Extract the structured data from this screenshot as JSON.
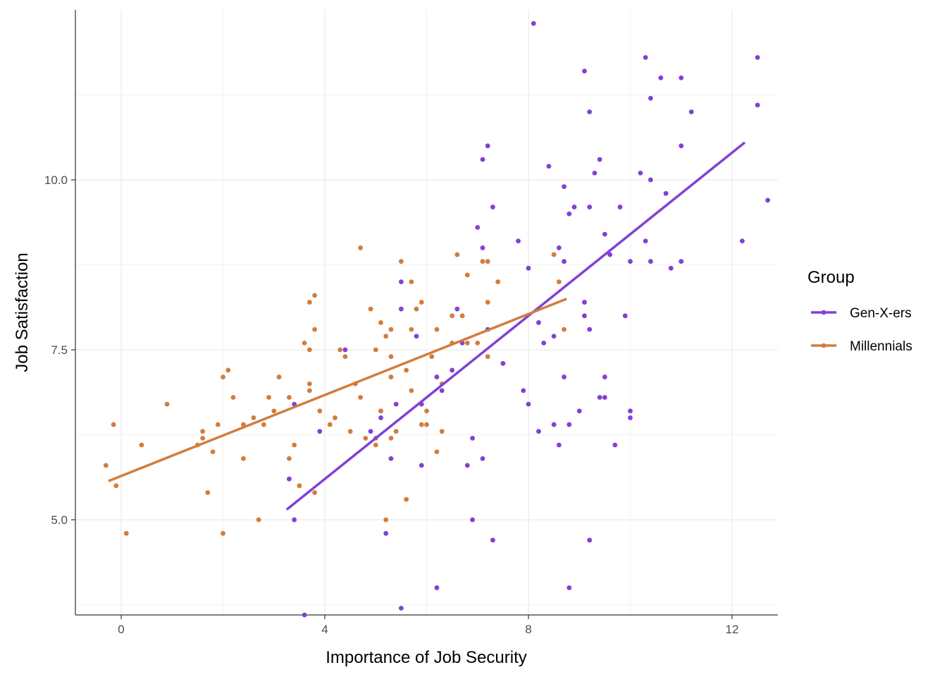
{
  "chart_data": {
    "type": "scatter",
    "title": "",
    "xlabel": "Importance of Job Security",
    "ylabel": "Job Satisfaction",
    "xlim": [
      -0.9,
      12.9
    ],
    "ylim": [
      3.6,
      12.5
    ],
    "x_ticks": [
      0,
      4,
      8,
      12
    ],
    "x_tick_labels": [
      "0",
      "4",
      "8",
      "12"
    ],
    "y_ticks": [
      5.0,
      7.5,
      10.0
    ],
    "y_tick_labels": [
      "5.0",
      "7.5",
      "10.0"
    ],
    "grid": true,
    "legend": {
      "title": "Group",
      "position": "right"
    },
    "series": [
      {
        "name": "Gen-X-ers",
        "color": "#8140d6",
        "fit_line": {
          "x": [
            3.25,
            12.25
          ],
          "y": [
            5.15,
            10.55
          ]
        },
        "points": [
          [
            3.3,
            5.6
          ],
          [
            3.4,
            6.7
          ],
          [
            3.4,
            5.0
          ],
          [
            3.6,
            3.6
          ],
          [
            3.9,
            6.3
          ],
          [
            4.4,
            7.5
          ],
          [
            4.9,
            6.3
          ],
          [
            5.1,
            6.5
          ],
          [
            5.1,
            6.6
          ],
          [
            5.2,
            4.8
          ],
          [
            5.3,
            5.9
          ],
          [
            5.4,
            6.7
          ],
          [
            5.5,
            8.1
          ],
          [
            5.5,
            8.5
          ],
          [
            5.5,
            3.7
          ],
          [
            5.8,
            7.7
          ],
          [
            5.9,
            6.7
          ],
          [
            5.9,
            5.8
          ],
          [
            6.2,
            7.1
          ],
          [
            6.2,
            4.0
          ],
          [
            6.3,
            6.9
          ],
          [
            6.5,
            7.2
          ],
          [
            6.6,
            8.1
          ],
          [
            6.7,
            7.6
          ],
          [
            6.8,
            5.8
          ],
          [
            6.9,
            6.2
          ],
          [
            6.9,
            5.0
          ],
          [
            7.0,
            9.3
          ],
          [
            7.1,
            10.3
          ],
          [
            7.1,
            9.0
          ],
          [
            7.1,
            5.9
          ],
          [
            7.2,
            10.5
          ],
          [
            7.2,
            7.8
          ],
          [
            7.3,
            9.6
          ],
          [
            7.3,
            4.7
          ],
          [
            7.5,
            7.3
          ],
          [
            7.8,
            9.1
          ],
          [
            7.9,
            6.9
          ],
          [
            8.0,
            6.7
          ],
          [
            8.0,
            8.7
          ],
          [
            8.1,
            12.3
          ],
          [
            8.2,
            7.9
          ],
          [
            8.2,
            6.3
          ],
          [
            8.3,
            7.6
          ],
          [
            8.4,
            10.2
          ],
          [
            8.5,
            6.4
          ],
          [
            8.5,
            7.7
          ],
          [
            8.6,
            9.0
          ],
          [
            8.6,
            6.1
          ],
          [
            8.7,
            9.9
          ],
          [
            8.7,
            7.1
          ],
          [
            8.7,
            8.8
          ],
          [
            8.8,
            4.0
          ],
          [
            8.8,
            9.5
          ],
          [
            8.8,
            6.4
          ],
          [
            8.9,
            9.6
          ],
          [
            9.0,
            6.6
          ],
          [
            9.1,
            11.6
          ],
          [
            9.1,
            8.2
          ],
          [
            9.1,
            8.0
          ],
          [
            9.2,
            4.7
          ],
          [
            9.2,
            11.0
          ],
          [
            9.2,
            9.6
          ],
          [
            9.2,
            7.8
          ],
          [
            9.3,
            10.1
          ],
          [
            9.4,
            10.3
          ],
          [
            9.4,
            6.8
          ],
          [
            9.5,
            9.2
          ],
          [
            9.5,
            7.1
          ],
          [
            9.5,
            6.8
          ],
          [
            9.6,
            8.9
          ],
          [
            9.7,
            6.1
          ],
          [
            9.8,
            9.6
          ],
          [
            9.9,
            8.0
          ],
          [
            10.0,
            8.8
          ],
          [
            10.0,
            6.6
          ],
          [
            10.0,
            6.5
          ],
          [
            10.2,
            10.1
          ],
          [
            10.3,
            9.1
          ],
          [
            10.3,
            11.8
          ],
          [
            10.4,
            10.0
          ],
          [
            10.4,
            11.2
          ],
          [
            10.4,
            8.8
          ],
          [
            10.6,
            11.5
          ],
          [
            10.7,
            9.8
          ],
          [
            10.8,
            8.7
          ],
          [
            11.0,
            11.5
          ],
          [
            11.0,
            8.8
          ],
          [
            11.0,
            10.5
          ],
          [
            11.2,
            11.0
          ],
          [
            12.2,
            9.1
          ],
          [
            12.5,
            11.8
          ],
          [
            12.5,
            11.1
          ],
          [
            12.7,
            9.7
          ]
        ]
      },
      {
        "name": "Millennials",
        "color": "#d27d3d",
        "fit_line": {
          "x": [
            -0.25,
            8.75
          ],
          "y": [
            5.57,
            8.25
          ]
        },
        "points": [
          [
            -0.3,
            5.8
          ],
          [
            -0.15,
            6.4
          ],
          [
            -0.1,
            5.5
          ],
          [
            0.1,
            4.8
          ],
          [
            0.4,
            6.1
          ],
          [
            0.9,
            6.7
          ],
          [
            1.5,
            6.1
          ],
          [
            1.6,
            6.2
          ],
          [
            1.6,
            6.3
          ],
          [
            1.7,
            5.4
          ],
          [
            1.8,
            6.0
          ],
          [
            1.9,
            6.4
          ],
          [
            2.0,
            4.8
          ],
          [
            2.0,
            7.1
          ],
          [
            2.1,
            7.2
          ],
          [
            2.2,
            6.8
          ],
          [
            2.4,
            6.4
          ],
          [
            2.4,
            5.9
          ],
          [
            2.6,
            6.5
          ],
          [
            2.7,
            5.0
          ],
          [
            2.8,
            6.4
          ],
          [
            2.9,
            6.8
          ],
          [
            3.0,
            6.6
          ],
          [
            3.1,
            7.1
          ],
          [
            3.3,
            6.8
          ],
          [
            3.3,
            5.9
          ],
          [
            3.4,
            6.1
          ],
          [
            3.5,
            5.5
          ],
          [
            3.6,
            7.6
          ],
          [
            3.7,
            8.2
          ],
          [
            3.7,
            7.5
          ],
          [
            3.7,
            7.0
          ],
          [
            3.7,
            6.9
          ],
          [
            3.8,
            8.3
          ],
          [
            3.8,
            7.8
          ],
          [
            3.8,
            5.4
          ],
          [
            3.9,
            6.6
          ],
          [
            4.1,
            6.4
          ],
          [
            4.2,
            6.5
          ],
          [
            4.3,
            7.5
          ],
          [
            4.4,
            7.4
          ],
          [
            4.5,
            6.3
          ],
          [
            4.6,
            7.0
          ],
          [
            4.7,
            9.0
          ],
          [
            4.7,
            6.8
          ],
          [
            4.8,
            6.2
          ],
          [
            4.9,
            8.1
          ],
          [
            5.0,
            7.5
          ],
          [
            5.0,
            6.2
          ],
          [
            5.0,
            6.1
          ],
          [
            5.1,
            7.9
          ],
          [
            5.1,
            6.6
          ],
          [
            5.2,
            7.7
          ],
          [
            5.2,
            5.0
          ],
          [
            5.3,
            7.8
          ],
          [
            5.3,
            7.4
          ],
          [
            5.3,
            7.1
          ],
          [
            5.3,
            6.2
          ],
          [
            5.4,
            6.3
          ],
          [
            5.5,
            8.8
          ],
          [
            5.6,
            5.3
          ],
          [
            5.6,
            7.2
          ],
          [
            5.7,
            8.5
          ],
          [
            5.7,
            7.8
          ],
          [
            5.7,
            6.9
          ],
          [
            5.8,
            8.1
          ],
          [
            5.9,
            8.2
          ],
          [
            5.9,
            6.4
          ],
          [
            6.0,
            6.6
          ],
          [
            6.0,
            6.4
          ],
          [
            6.1,
            7.4
          ],
          [
            6.2,
            6.0
          ],
          [
            6.2,
            7.8
          ],
          [
            6.3,
            7.0
          ],
          [
            6.3,
            6.3
          ],
          [
            6.5,
            8.0
          ],
          [
            6.5,
            7.6
          ],
          [
            6.6,
            8.9
          ],
          [
            6.7,
            8.0
          ],
          [
            6.8,
            7.6
          ],
          [
            6.8,
            8.6
          ],
          [
            7.0,
            7.6
          ],
          [
            7.1,
            8.8
          ],
          [
            7.2,
            8.8
          ],
          [
            7.2,
            8.2
          ],
          [
            7.2,
            7.4
          ],
          [
            7.4,
            8.5
          ],
          [
            8.5,
            8.9
          ],
          [
            8.6,
            8.5
          ],
          [
            8.7,
            7.8
          ]
        ]
      }
    ]
  }
}
